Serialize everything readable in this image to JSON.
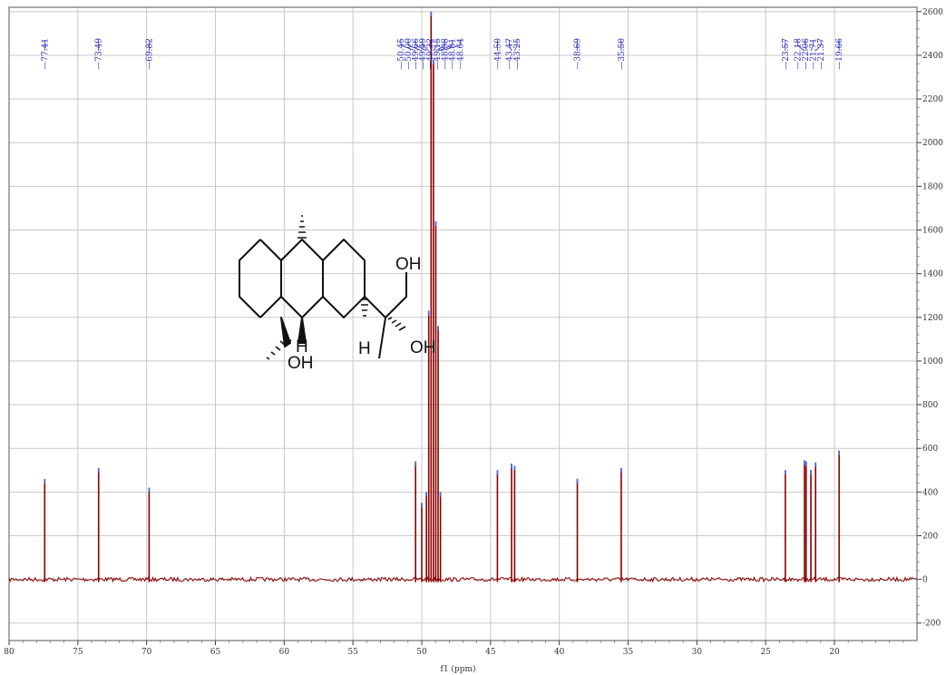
{
  "chart_data": {
    "type": "line",
    "title": "",
    "xlabel": "f1 (ppm)",
    "ylabel": "",
    "xlim": [
      80,
      14
    ],
    "ylim": [
      -280,
      2620
    ],
    "x_axis_reversed": true,
    "grid": true,
    "legend": "none",
    "x_ticks": [
      "80",
      "75",
      "70",
      "65",
      "60",
      "55",
      "50",
      "45",
      "40",
      "35",
      "30",
      "25",
      "20"
    ],
    "y_ticks": [
      "2600",
      "2400",
      "2200",
      "2000",
      "1800",
      "1600",
      "1400",
      "1200",
      "1000",
      "800",
      "600",
      "400",
      "200",
      "0",
      "-200"
    ],
    "peaks": [
      {
        "ppm": 77.41,
        "height": 460
      },
      {
        "ppm": 73.49,
        "height": 510
      },
      {
        "ppm": 69.82,
        "height": 420
      },
      {
        "ppm": 50.45,
        "height": 540
      },
      {
        "ppm": 50.0,
        "height": 350
      },
      {
        "ppm": 49.66,
        "height": 400
      },
      {
        "ppm": 49.49,
        "height": 1230
      },
      {
        "ppm": 49.32,
        "height": 2600
      },
      {
        "ppm": 49.15,
        "height": 2380
      },
      {
        "ppm": 48.98,
        "height": 1640
      },
      {
        "ppm": 48.81,
        "height": 1160
      },
      {
        "ppm": 48.64,
        "height": 400
      },
      {
        "ppm": 44.5,
        "height": 500
      },
      {
        "ppm": 43.47,
        "height": 530
      },
      {
        "ppm": 43.25,
        "height": 520
      },
      {
        "ppm": 38.69,
        "height": 460
      },
      {
        "ppm": 35.5,
        "height": 510
      },
      {
        "ppm": 23.57,
        "height": 500
      },
      {
        "ppm": 22.18,
        "height": 545
      },
      {
        "ppm": 22.06,
        "height": 540
      },
      {
        "ppm": 21.71,
        "height": 500
      },
      {
        "ppm": 21.37,
        "height": 535
      },
      {
        "ppm": 19.66,
        "height": 590
      }
    ],
    "peak_labels": [
      {
        "ppm": 77.41,
        "label": "77.41"
      },
      {
        "ppm": 73.49,
        "label": "73.49"
      },
      {
        "ppm": 69.82,
        "label": "69.82"
      },
      {
        "ppm": 50.45,
        "label": "50.45"
      },
      {
        "ppm": 50.0,
        "label": "50.00"
      },
      {
        "ppm": 49.66,
        "label": "49.66"
      },
      {
        "ppm": 49.49,
        "label": "49.49"
      },
      {
        "ppm": 49.32,
        "label": "49.32"
      },
      {
        "ppm": 49.15,
        "label": "49.15"
      },
      {
        "ppm": 48.98,
        "label": "48.98"
      },
      {
        "ppm": 48.81,
        "label": "48.81"
      },
      {
        "ppm": 48.64,
        "label": "48.64"
      },
      {
        "ppm": 44.5,
        "label": "44.50"
      },
      {
        "ppm": 43.47,
        "label": "43.47"
      },
      {
        "ppm": 43.25,
        "label": "43.25"
      },
      {
        "ppm": 38.69,
        "label": "38.69"
      },
      {
        "ppm": 35.5,
        "label": "35.50"
      },
      {
        "ppm": 23.57,
        "label": "23.57"
      },
      {
        "ppm": 22.18,
        "label": "22.18"
      },
      {
        "ppm": 22.06,
        "label": "22.06"
      },
      {
        "ppm": 21.71,
        "label": "21.71"
      },
      {
        "ppm": 21.37,
        "label": "21.37"
      },
      {
        "ppm": 19.66,
        "label": "19.66"
      }
    ],
    "structure_labels": {
      "oh_top": "OH",
      "oh_mid": "OH",
      "oh_bottom": "OH",
      "h_left": "H",
      "h_right": "H"
    },
    "colors": {
      "spectrum": "#8b0000",
      "peak_tip": "#4a6fd8",
      "peak_label": "#2b2bb8",
      "grid": "#c8c8c8"
    }
  }
}
